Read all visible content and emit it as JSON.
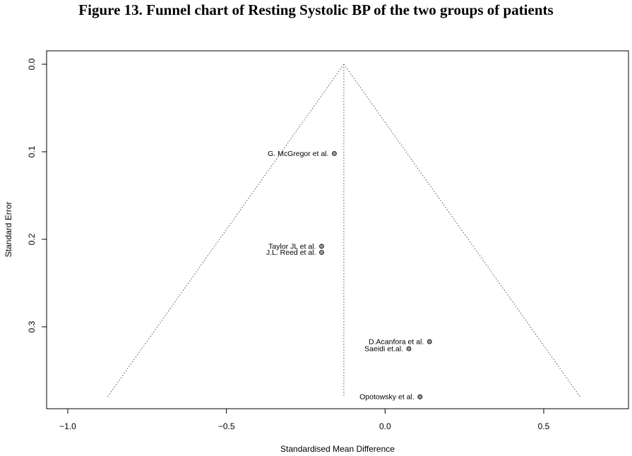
{
  "chart_data": {
    "type": "scatter",
    "title": "Figure 13. Funnel chart of Resting Systolic BP of the two groups of patients",
    "xlabel": "Standardised Mean Difference",
    "ylabel": "Standard Error",
    "xlim": [
      -1.07,
      0.78
    ],
    "ylim": [
      0.0,
      0.395
    ],
    "y_reversed": true,
    "x_ticks": [
      -1.0,
      -0.5,
      0.0,
      0.5
    ],
    "x_tick_labels": [
      "−1.0",
      "−0.5",
      "0.0",
      "0.5"
    ],
    "y_ticks": [
      0.0,
      0.1,
      0.2,
      0.3
    ],
    "y_tick_labels": [
      "0.0",
      "0.1",
      "0.2",
      "0.3"
    ],
    "grid": false,
    "pooled_estimate": -0.13,
    "funnel_max_se": 0.38,
    "points": [
      {
        "label": "G. McGregor et al.",
        "x": -0.16,
        "y": 0.102
      },
      {
        "label": "Taylor JL et al.",
        "x": -0.2,
        "y": 0.208
      },
      {
        "label": "J.L. Reed et al.",
        "x": -0.2,
        "y": 0.215
      },
      {
        "label": "D.Acanfora et al.",
        "x": 0.14,
        "y": 0.317
      },
      {
        "label": "Saeidi et.al.",
        "x": 0.075,
        "y": 0.325
      },
      {
        "label": "Opotowsky et al.",
        "x": 0.11,
        "y": 0.38
      }
    ],
    "point_color": "#999999"
  }
}
